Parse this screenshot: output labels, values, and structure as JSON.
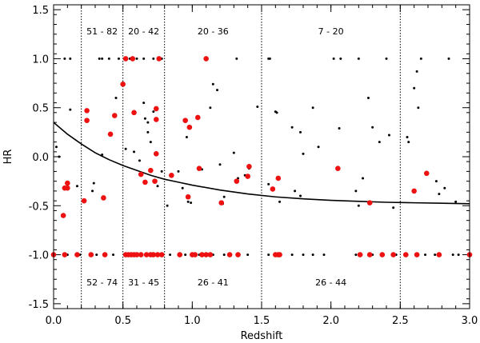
{
  "chart_data": {
    "type": "scatter",
    "title": "",
    "xlabel": "Redshift",
    "ylabel": "HR",
    "xlim": [
      0.0,
      3.0
    ],
    "ylim": [
      -1.55,
      1.55
    ],
    "x_major_ticks": [
      0.0,
      0.5,
      1.0,
      1.5,
      2.0,
      2.5,
      3.0
    ],
    "x_tick_labels": [
      "0.0",
      "0.5",
      "1.0",
      "1.5",
      "2.0",
      "2.5",
      "3.0"
    ],
    "y_major_ticks": [
      -1.5,
      -1.0,
      -0.5,
      0.0,
      0.5,
      1.0,
      1.5
    ],
    "y_tick_labels": [
      "-1.5",
      "-1.0",
      "-0.5",
      "0.0",
      "0.5",
      "1.0",
      "1.5"
    ],
    "x_minor_step": 0.1,
    "y_minor_step": 0.1,
    "grid": false,
    "bin_edges": [
      0.2,
      0.5,
      0.8,
      1.5,
      2.5
    ],
    "annotations_top": [
      {
        "x": 0.35,
        "text": "51 - 82"
      },
      {
        "x": 0.65,
        "text": "20 - 42"
      },
      {
        "x": 1.15,
        "text": "20 - 36"
      },
      {
        "x": 2.0,
        "text": "7 - 20"
      }
    ],
    "annotations_bottom": [
      {
        "x": 0.35,
        "text": "52 - 74"
      },
      {
        "x": 0.65,
        "text": "31 - 45"
      },
      {
        "x": 1.15,
        "text": "26 - 41"
      },
      {
        "x": 2.0,
        "text": "26 - 44"
      }
    ],
    "annotation_top_y": 1.28,
    "annotation_bottom_y": -1.28,
    "curve": {
      "name": "model",
      "color": "#000000",
      "x": [
        0.0,
        0.1,
        0.2,
        0.3,
        0.4,
        0.5,
        0.6,
        0.7,
        0.8,
        0.9,
        1.0,
        1.2,
        1.4,
        1.6,
        1.8,
        2.0,
        2.2,
        2.4,
        2.6,
        2.8,
        3.0
      ],
      "y": [
        0.35,
        0.23,
        0.13,
        0.04,
        -0.03,
        -0.09,
        -0.14,
        -0.19,
        -0.23,
        -0.26,
        -0.29,
        -0.34,
        -0.38,
        -0.41,
        -0.43,
        -0.445,
        -0.455,
        -0.465,
        -0.47,
        -0.475,
        -0.48
      ]
    },
    "series": [
      {
        "name": "black points",
        "color": "#000000",
        "marker": "small-dot",
        "points": [
          [
            0.02,
            0.1
          ],
          [
            0.04,
            0.0
          ],
          [
            0.1,
            -0.3
          ],
          [
            0.12,
            0.48
          ],
          [
            0.17,
            -0.3
          ],
          [
            0.28,
            -0.35
          ],
          [
            0.29,
            -0.27
          ],
          [
            0.35,
            0.02
          ],
          [
            0.45,
            0.6
          ],
          [
            0.52,
            0.08
          ],
          [
            0.58,
            0.05
          ],
          [
            0.62,
            -0.04
          ],
          [
            0.65,
            0.55
          ],
          [
            0.66,
            0.39
          ],
          [
            0.68,
            0.35
          ],
          [
            0.68,
            0.25
          ],
          [
            0.7,
            0.15
          ],
          [
            0.72,
            0.46
          ],
          [
            0.75,
            -0.3
          ],
          [
            0.78,
            -0.15
          ],
          [
            0.82,
            -0.5
          ],
          [
            0.9,
            -0.15
          ],
          [
            0.93,
            -0.32
          ],
          [
            0.96,
            0.2
          ],
          [
            0.97,
            -0.46
          ],
          [
            0.99,
            -0.47
          ],
          [
            1.07,
            -0.13
          ],
          [
            1.1,
            1.0
          ],
          [
            1.13,
            0.5
          ],
          [
            1.15,
            0.74
          ],
          [
            1.18,
            0.68
          ],
          [
            1.2,
            -0.08
          ],
          [
            1.22,
            -0.48
          ],
          [
            1.23,
            -0.41
          ],
          [
            1.3,
            0.04
          ],
          [
            1.33,
            -0.22
          ],
          [
            1.38,
            -0.19
          ],
          [
            1.41,
            -0.12
          ],
          [
            1.47,
            0.51
          ],
          [
            1.55,
            -0.28
          ],
          [
            1.6,
            0.46
          ],
          [
            1.61,
            0.45
          ],
          [
            1.63,
            -0.46
          ],
          [
            1.72,
            0.3
          ],
          [
            1.74,
            -0.35
          ],
          [
            1.78,
            0.25
          ],
          [
            1.78,
            -0.4
          ],
          [
            1.8,
            0.03
          ],
          [
            1.87,
            0.5
          ],
          [
            1.91,
            0.1
          ],
          [
            2.06,
            0.29
          ],
          [
            2.18,
            -0.35
          ],
          [
            2.2,
            -0.5
          ],
          [
            2.23,
            -0.22
          ],
          [
            2.27,
            0.6
          ],
          [
            2.3,
            0.3
          ],
          [
            2.35,
            0.15
          ],
          [
            2.42,
            0.22
          ],
          [
            2.45,
            -0.52
          ],
          [
            2.55,
            0.2
          ],
          [
            2.56,
            0.15
          ],
          [
            2.6,
            0.7
          ],
          [
            2.62,
            0.87
          ],
          [
            2.63,
            0.5
          ],
          [
            2.76,
            -0.25
          ],
          [
            2.78,
            -0.38
          ],
          [
            2.82,
            -0.32
          ],
          [
            2.9,
            -0.46
          ],
          [
            0.08,
            1.0
          ],
          [
            0.12,
            1.0
          ],
          [
            0.33,
            1.0
          ],
          [
            0.35,
            1.0
          ],
          [
            0.4,
            1.0
          ],
          [
            0.47,
            1.0
          ],
          [
            0.55,
            1.0
          ],
          [
            0.6,
            1.0
          ],
          [
            0.65,
            1.0
          ],
          [
            0.72,
            1.0
          ],
          [
            0.78,
            1.0
          ],
          [
            1.32,
            1.0
          ],
          [
            1.55,
            1.0
          ],
          [
            1.56,
            1.0
          ],
          [
            2.02,
            1.0
          ],
          [
            2.07,
            1.0
          ],
          [
            2.2,
            1.0
          ],
          [
            2.4,
            1.0
          ],
          [
            2.65,
            1.0
          ],
          [
            2.85,
            1.0
          ],
          [
            0.0,
            -1.0
          ],
          [
            0.1,
            -1.0
          ],
          [
            0.19,
            -1.0
          ],
          [
            0.31,
            -1.0
          ],
          [
            0.43,
            -1.0
          ],
          [
            0.56,
            -1.0
          ],
          [
            0.62,
            -1.0
          ],
          [
            0.69,
            -1.0
          ],
          [
            0.84,
            -1.0
          ],
          [
            0.9,
            -1.0
          ],
          [
            0.95,
            -1.0
          ],
          [
            1.05,
            -1.0
          ],
          [
            1.15,
            -1.0
          ],
          [
            1.23,
            -1.0
          ],
          [
            1.33,
            -1.0
          ],
          [
            1.4,
            -1.0
          ],
          [
            1.55,
            -1.0
          ],
          [
            1.63,
            -1.0
          ],
          [
            1.72,
            -1.0
          ],
          [
            1.8,
            -1.0
          ],
          [
            1.87,
            -1.0
          ],
          [
            1.95,
            -1.0
          ],
          [
            2.18,
            -1.0
          ],
          [
            2.22,
            -1.0
          ],
          [
            2.3,
            -1.0
          ],
          [
            2.38,
            -1.0
          ],
          [
            2.47,
            -1.0
          ],
          [
            2.55,
            -1.0
          ],
          [
            2.62,
            -1.0
          ],
          [
            2.68,
            -1.0
          ],
          [
            2.75,
            -1.0
          ],
          [
            2.88,
            -1.0
          ],
          [
            2.92,
            -1.0
          ]
        ]
      },
      {
        "name": "red points",
        "color": "#ee1111",
        "marker": "large-dot",
        "points": [
          [
            0.07,
            -0.6
          ],
          [
            0.08,
            -0.32
          ],
          [
            0.1,
            -0.32
          ],
          [
            0.1,
            -0.27
          ],
          [
            0.22,
            -0.45
          ],
          [
            0.24,
            0.47
          ],
          [
            0.24,
            0.37
          ],
          [
            0.36,
            -0.42
          ],
          [
            0.41,
            0.23
          ],
          [
            0.44,
            0.42
          ],
          [
            0.5,
            0.74
          ],
          [
            0.52,
            1.0
          ],
          [
            0.57,
            1.0
          ],
          [
            0.58,
            0.45
          ],
          [
            0.63,
            -0.18
          ],
          [
            0.66,
            -0.26
          ],
          [
            0.7,
            -0.14
          ],
          [
            0.73,
            -0.25
          ],
          [
            0.74,
            0.49
          ],
          [
            0.74,
            0.38
          ],
          [
            0.74,
            0.03
          ],
          [
            0.76,
            1.0
          ],
          [
            0.85,
            -0.19
          ],
          [
            0.95,
            0.37
          ],
          [
            0.97,
            -0.41
          ],
          [
            0.98,
            0.3
          ],
          [
            1.04,
            0.4
          ],
          [
            1.05,
            -0.12
          ],
          [
            1.1,
            1.0
          ],
          [
            1.21,
            -0.47
          ],
          [
            1.32,
            -0.25
          ],
          [
            1.4,
            -0.2
          ],
          [
            1.41,
            -0.1
          ],
          [
            1.58,
            -0.33
          ],
          [
            1.62,
            -0.22
          ],
          [
            2.05,
            -0.12
          ],
          [
            2.28,
            -0.47
          ],
          [
            2.6,
            -0.35
          ],
          [
            2.69,
            -0.17
          ],
          [
            0.0,
            -1.0
          ],
          [
            0.08,
            -1.0
          ],
          [
            0.17,
            -1.0
          ],
          [
            0.27,
            -1.0
          ],
          [
            0.37,
            -1.0
          ],
          [
            0.52,
            -1.0
          ],
          [
            0.54,
            -1.0
          ],
          [
            0.56,
            -1.0
          ],
          [
            0.58,
            -1.0
          ],
          [
            0.6,
            -1.0
          ],
          [
            0.63,
            -1.0
          ],
          [
            0.67,
            -1.0
          ],
          [
            0.7,
            -1.0
          ],
          [
            0.72,
            -1.0
          ],
          [
            0.75,
            -1.0
          ],
          [
            0.78,
            -1.0
          ],
          [
            0.91,
            -1.0
          ],
          [
            1.0,
            -1.0
          ],
          [
            1.02,
            -1.0
          ],
          [
            1.07,
            -1.0
          ],
          [
            1.1,
            -1.0
          ],
          [
            1.13,
            -1.0
          ],
          [
            1.27,
            -1.0
          ],
          [
            1.33,
            -1.0
          ],
          [
            1.6,
            -1.0
          ],
          [
            1.62,
            -1.0
          ],
          [
            1.63,
            -1.0
          ],
          [
            2.21,
            -1.0
          ],
          [
            2.28,
            -1.0
          ],
          [
            2.37,
            -1.0
          ],
          [
            2.45,
            -1.0
          ],
          [
            2.54,
            -1.0
          ],
          [
            2.62,
            -1.0
          ],
          [
            2.78,
            -1.0
          ],
          [
            3.0,
            -1.0
          ]
        ]
      }
    ]
  }
}
